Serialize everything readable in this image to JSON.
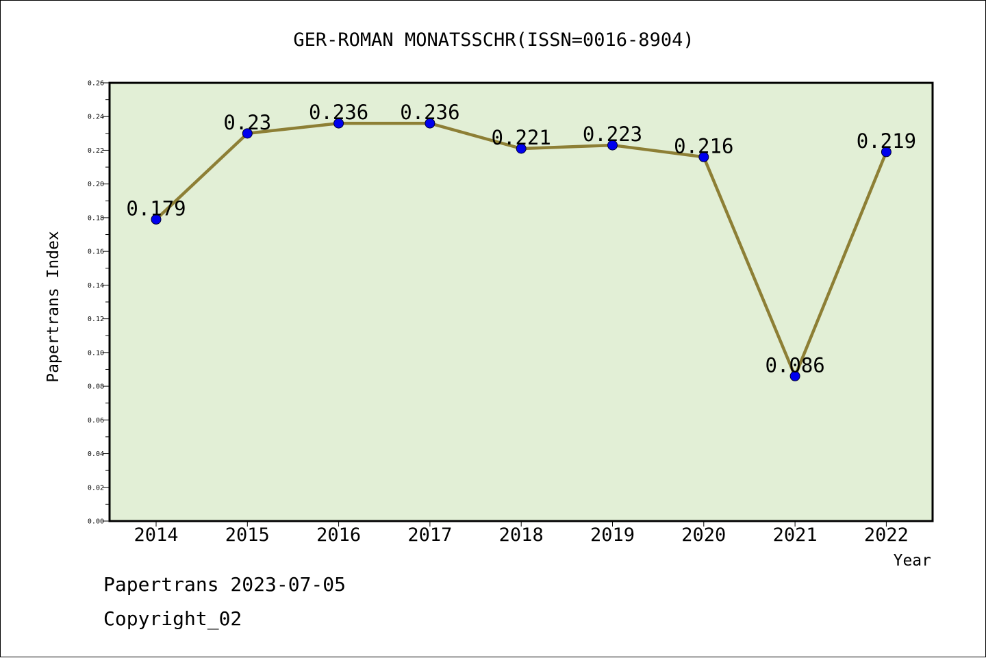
{
  "footer": {
    "line1": "Papertrans 2023-07-05",
    "line2": "Copyright_02"
  },
  "colors": {
    "plot_background": "#e2efd6",
    "line": "#8d7f35",
    "marker": "#0000ee",
    "axis": "#000000"
  },
  "chart_data": {
    "type": "line",
    "title": "GER-ROMAN MONATSSCHR(ISSN=0016-8904)",
    "xlabel": "Year",
    "ylabel": "Papertrans Index",
    "categories": [
      "2014",
      "2015",
      "2016",
      "2017",
      "2018",
      "2019",
      "2020",
      "2021",
      "2022"
    ],
    "series": [
      {
        "values": [
          0.179,
          0.23,
          0.236,
          0.236,
          0.221,
          0.223,
          0.216,
          0.086,
          0.219
        ],
        "data_labels": [
          "0.179",
          "0.23",
          "0.236",
          "0.236",
          "0.221",
          "0.223",
          "0.216",
          "0.086",
          "0.219"
        ]
      }
    ],
    "ylim": [
      0,
      0.26
    ],
    "yticks": [
      "0.00",
      "0.02",
      "0.04",
      "0.06",
      "0.08",
      "0.10",
      "0.12",
      "0.14",
      "0.16",
      "0.18",
      "0.20",
      "0.22",
      "0.24",
      "0.26"
    ],
    "grid": false,
    "legend": "none"
  }
}
